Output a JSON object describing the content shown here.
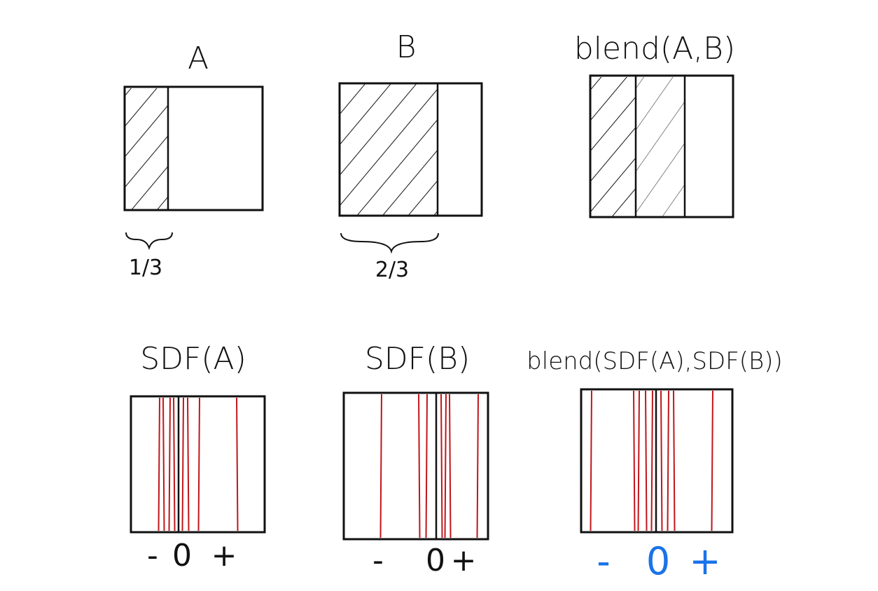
{
  "top_row": [
    {
      "title": "A",
      "fraction": "1/3"
    },
    {
      "title": "B",
      "fraction": "2/3"
    },
    {
      "title": "blend(A,B)"
    }
  ],
  "bottom_row": [
    {
      "title": "SDF(A)",
      "signs": [
        "-",
        "0",
        "+"
      ]
    },
    {
      "title": "SDF(B)",
      "signs": [
        "-",
        "0",
        "+"
      ]
    },
    {
      "title": "blend(SDF(A),SDF(B))",
      "signs": [
        "-",
        "0",
        "+"
      ]
    }
  ]
}
